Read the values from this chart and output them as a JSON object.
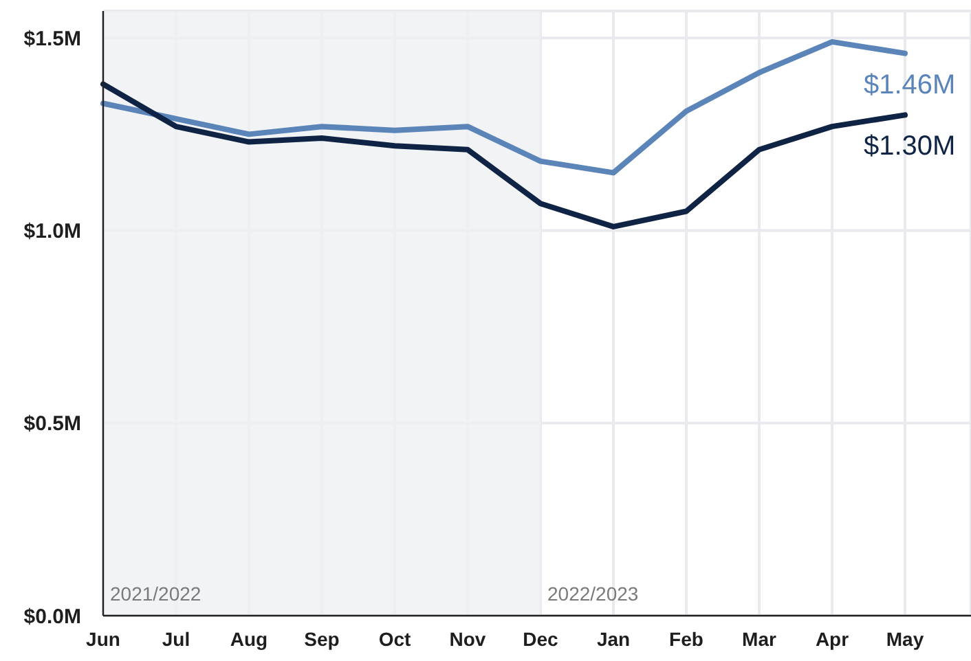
{
  "chart_data": {
    "type": "line",
    "categories": [
      "Jun",
      "Jul",
      "Aug",
      "Sep",
      "Oct",
      "Nov",
      "Dec",
      "Jan",
      "Feb",
      "Mar",
      "Apr",
      "May"
    ],
    "series": [
      {
        "color": "#5b84b9",
        "values": [
          1.33,
          1.29,
          1.25,
          1.27,
          1.26,
          1.27,
          1.18,
          1.15,
          1.31,
          1.41,
          1.49,
          1.46
        ],
        "value_labels": [
          null,
          null,
          null,
          null,
          null,
          null,
          null,
          null,
          null,
          null,
          null,
          "$1.46M"
        ]
      },
      {
        "color": "#0f2444",
        "values": [
          1.38,
          1.27,
          1.23,
          1.24,
          1.22,
          1.21,
          1.07,
          1.01,
          1.05,
          1.21,
          1.27,
          1.3
        ],
        "value_labels": [
          null,
          null,
          null,
          null,
          null,
          null,
          null,
          null,
          null,
          null,
          null,
          "$1.30M"
        ]
      }
    ],
    "ylim": [
      0,
      1.57
    ],
    "yticks": [
      {
        "value": 0,
        "label": "$0.0M"
      },
      {
        "value": 0.5,
        "label": "$0.5M"
      },
      {
        "value": 1,
        "label": "$1.0M"
      },
      {
        "value": 1.5,
        "label": "$1.5M"
      }
    ],
    "grid": true,
    "marker": "none",
    "line_style": "solid",
    "bands": [
      {
        "axis": "x",
        "from": "Jun",
        "to": "Dec",
        "label": "2021/2022",
        "color": "#eff0f3"
      }
    ],
    "annotations": [
      {
        "text": "2022/2023",
        "x": "Dec",
        "y": 0
      }
    ]
  }
}
